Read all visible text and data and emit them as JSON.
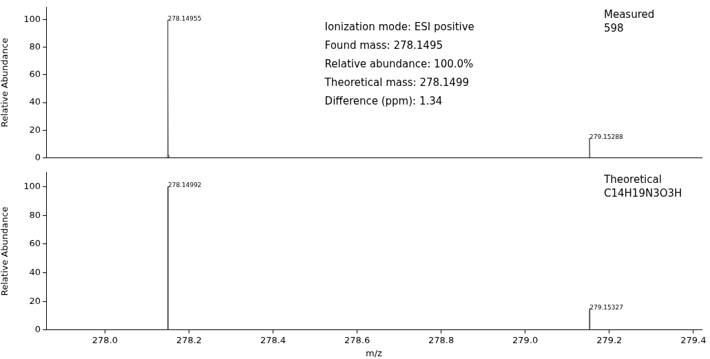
{
  "chart_data": [
    {
      "type": "line",
      "title": "Measured",
      "subtitle": "598",
      "ylabel": "Relative Abundance",
      "xlim": [
        277.86,
        279.42
      ],
      "ylim": [
        0,
        109
      ],
      "yticks": [
        0,
        20,
        40,
        60,
        80,
        100
      ],
      "tick_labels": "y",
      "grid": false,
      "legend": false,
      "marker": "none",
      "series": [
        {
          "color": "#4d4d4d",
          "x": [
            278.1475,
            278.1488,
            278.1492,
            278.14955,
            278.1499,
            278.1503,
            278.1516
          ],
          "values": [
            0,
            2,
            60,
            100,
            60,
            2,
            0
          ]
        },
        {
          "color": "#4d4d4d",
          "x": [
            279.1516,
            279.15288,
            279.1542
          ],
          "values": [
            0,
            14,
            0
          ]
        }
      ],
      "annotations": [
        "Ionization mode: ESI positive",
        "Found mass: 278.1495",
        "Relative abundance: 100.0%",
        "Theoretical mass: 278.1499",
        "Difference (ppm): 1.34",
        {
          "text": "278.14955",
          "x": 278.14955,
          "y": 100
        },
        {
          "text": "279.15288",
          "x": 279.15288,
          "y": 14
        }
      ]
    },
    {
      "type": "line",
      "title": "Theoretical",
      "subtitle": "C14H19N3O3H",
      "xlabel": "m/z",
      "ylabel": "Relative Abundance",
      "xlim": [
        277.86,
        279.42
      ],
      "xticks": [
        {
          "value": 278,
          "label": "278.0"
        },
        278.2,
        278.4,
        278.6,
        278.8,
        {
          "value": 279,
          "label": "279.0"
        },
        279.2,
        279.4
      ],
      "ylim": [
        0,
        110
      ],
      "yticks": [
        0,
        20,
        40,
        60,
        80,
        100
      ],
      "grid": false,
      "legend": false,
      "marker": "none",
      "series": [
        {
          "type": "bar",
          "color": "#4d4d4d",
          "x": [
            278.14992,
            279.15327
          ],
          "values": [
            100,
            14.8
          ]
        }
      ],
      "annotations": [
        {
          "text": "278.14992",
          "x": 278.14992,
          "y": 100
        },
        {
          "text": "279.15327",
          "x": 279.15327,
          "y": 14.8
        }
      ]
    }
  ]
}
